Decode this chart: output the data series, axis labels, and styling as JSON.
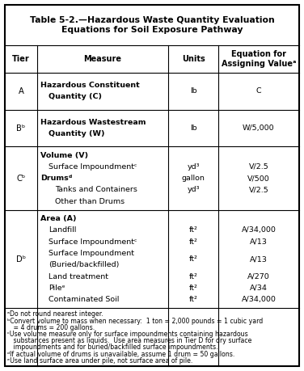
{
  "title_line1": "Table 5-2.—Hazardous Waste Quantity Evaluation",
  "title_line2": "Equations for Soil Exposure Pathway",
  "col_headers": [
    "Tier",
    "Measure",
    "Units",
    "Equation for\nAssigning Valueᵃ"
  ],
  "footnotes": [
    "ᵃDo not round nearest integer.",
    "ᵇConvert volume to mass when necessary:  1 ton = 2,000 pounds = 1 cubic yard\n   = 4 drums = 200 gallons.",
    "ᶜUse volume measure only for surface impoundments containing hazardous\n   substances present as liquids.  Use area measures in Tier D for dry surface\n   impoundments and for buried/backfilled surface impoundments.",
    "ᵈIf actual volume of drums is unavailable, assume 1 drum = 50 gallons.",
    "ᵉUse land surface area under pile, not surface area of pile."
  ],
  "rows": [
    {
      "tier": "A",
      "measure_items": [
        {
          "style": "bold",
          "text": "Hazardous Constituent\nQuantity (C)",
          "unit": "lb",
          "eq": "C"
        }
      ]
    },
    {
      "tier": "Bᵇ",
      "measure_items": [
        {
          "style": "bold",
          "text": "Hazardous Wastestream\nQuantity (W)",
          "unit": "lb",
          "eq": "W/5,000"
        }
      ]
    },
    {
      "tier": "Cᵇ",
      "measure_items": [
        {
          "style": "bold",
          "text": "Volume (V)",
          "unit": "",
          "eq": ""
        },
        {
          "style": "indent",
          "text": "Surface Impoundmentᶜ",
          "unit": "yd³",
          "eq": "V/2.5"
        },
        {
          "style": "bold",
          "text": "Drumsᵈ",
          "unit": "gallon",
          "eq": "V/500"
        },
        {
          "style": "indent2",
          "text": "Tanks and Containers",
          "unit": "yd³",
          "eq": "V/2.5"
        },
        {
          "style": "indent2",
          "text": "Other than Drums",
          "unit": "",
          "eq": ""
        }
      ]
    },
    {
      "tier": "Dᵇ",
      "measure_items": [
        {
          "style": "bold",
          "text": "Area (A)",
          "unit": "",
          "eq": ""
        },
        {
          "style": "indent",
          "text": "Landfill",
          "unit": "ft²",
          "eq": "A/34,000"
        },
        {
          "style": "indent",
          "text": "Surface Impoundmentᶜ",
          "unit": "ft²",
          "eq": "A/13"
        },
        {
          "style": "indent",
          "text": "Surface Impoundment\n(Buried/backfilled)",
          "unit": "ft²",
          "eq": "A/13"
        },
        {
          "style": "indent",
          "text": "Land treatment",
          "unit": "ft²",
          "eq": "A/270"
        },
        {
          "style": "indent",
          "text": "Pileᵉ",
          "unit": "ft²",
          "eq": "A/34"
        },
        {
          "style": "indent",
          "text": "Contaminated Soil",
          "unit": "ft²",
          "eq": "A/34,000"
        }
      ]
    }
  ],
  "bg_color": "#ffffff",
  "text_color": "#000000"
}
